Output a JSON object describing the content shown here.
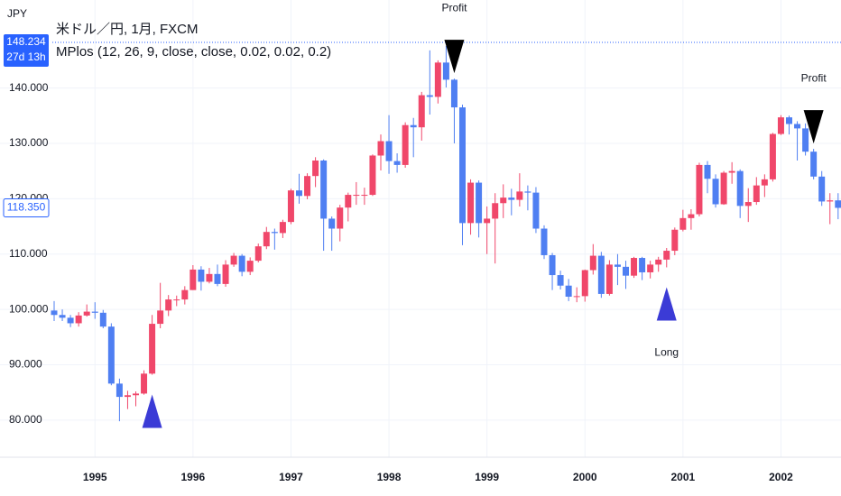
{
  "chart_data": {
    "type": "candlestick",
    "currency": "JPY",
    "title": "米ドル／円, 1月, FXCM",
    "indicator": "MPlos (12, 26, 9, close, close, 0.02, 0.02, 0.2)",
    "categories": [
      null,
      null,
      null,
      null,
      null,
      "1995",
      null,
      null,
      null,
      null,
      null,
      null,
      null,
      null,
      null,
      null,
      null,
      "1996",
      null,
      null,
      null,
      null,
      null,
      null,
      null,
      null,
      null,
      null,
      null,
      "1997",
      null,
      null,
      null,
      null,
      null,
      null,
      null,
      null,
      null,
      null,
      null,
      "1998",
      null,
      null,
      null,
      null,
      null,
      null,
      null,
      null,
      null,
      null,
      null,
      "1999",
      null,
      null,
      null,
      null,
      null,
      null,
      null,
      null,
      null,
      null,
      null,
      "2000",
      null,
      null,
      null,
      null,
      null,
      null,
      null,
      null,
      null,
      null,
      null,
      "2001",
      null,
      null,
      null,
      null,
      null,
      null,
      null,
      null,
      null,
      null,
      null,
      "2002",
      null,
      null,
      null,
      null,
      null,
      null,
      null
    ],
    "open": [
      99.8,
      99.0,
      98.5,
      97.5,
      98.9,
      99.6,
      99.4,
      96.9,
      86.6,
      84.2,
      84.5,
      84.8,
      88.4,
      97.4,
      99.8,
      101.8,
      101.8,
      103.5,
      107.2,
      105.0,
      106.4,
      104.6,
      108.1,
      109.7,
      106.8,
      108.8,
      111.4,
      114.0,
      113.8,
      115.8,
      121.5,
      120.5,
      124.1,
      126.9,
      116.4,
      114.6,
      118.4,
      120.7,
      120.7,
      120.7,
      127.8,
      130.4,
      126.8,
      126.1,
      133.3,
      132.9,
      138.7,
      138.4,
      144.6,
      141.5,
      136.5,
      115.6,
      122.9,
      115.6,
      116.4,
      119.2,
      120.2,
      119.8,
      121.3,
      121.1,
      114.6,
      109.8,
      106.2,
      104.3,
      102.3,
      102.4,
      107.1,
      109.7,
      102.8,
      108.1,
      107.7,
      106.1,
      109.3,
      106.7,
      108.1,
      109.0,
      110.6,
      114.4,
      116.5,
      117.2,
      126.1,
      123.6,
      119.0,
      124.7,
      125.0,
      118.7,
      119.4,
      122.4,
      123.5,
      131.7,
      134.7,
      133.5,
      132.7,
      128.5,
      124.0,
      119.5,
      119.7
    ],
    "high": [
      101.5,
      100.0,
      99.0,
      99.5,
      100.9,
      101.3,
      99.9,
      97.5,
      87.5,
      85.3,
      85.2,
      89.0,
      99.0,
      104.8,
      102.6,
      102.5,
      104.2,
      108.0,
      107.8,
      107.5,
      108.1,
      108.9,
      110.2,
      110.0,
      109.4,
      111.9,
      114.9,
      114.6,
      116.2,
      121.8,
      124.5,
      124.6,
      127.5,
      127.1,
      116.8,
      118.9,
      121.1,
      123.0,
      122.0,
      128.0,
      131.6,
      135.1,
      128.2,
      133.8,
      134.6,
      139.3,
      146.8,
      145.0,
      147.6,
      141.7,
      137.0,
      123.5,
      123.3,
      118.6,
      121.0,
      122.6,
      121.8,
      124.6,
      122.4,
      122.1,
      115.2,
      110.2,
      107.0,
      105.5,
      104.0,
      107.2,
      111.8,
      110.4,
      108.9,
      110.0,
      108.8,
      109.5,
      109.5,
      108.8,
      109.5,
      111.1,
      114.8,
      118.0,
      118.1,
      126.5,
      126.8,
      124.4,
      125.0,
      126.6,
      125.3,
      121.9,
      123.9,
      124.4,
      131.9,
      135.1,
      135.0,
      134.0,
      133.6,
      129.0,
      125.0,
      121.0,
      121.0
    ],
    "low": [
      97.9,
      97.9,
      96.8,
      96.9,
      98.7,
      98.3,
      96.6,
      86.3,
      79.8,
      82.0,
      82.5,
      84.6,
      88.2,
      96.6,
      98.8,
      100.6,
      100.9,
      103.5,
      103.4,
      104.7,
      104.2,
      104.1,
      107.7,
      106.0,
      106.2,
      108.5,
      110.9,
      110.8,
      112.9,
      115.4,
      119.1,
      119.9,
      122.1,
      110.6,
      110.6,
      112.3,
      115.9,
      118.9,
      118.9,
      120.5,
      125.1,
      124.5,
      124.7,
      125.6,
      127.5,
      130.5,
      135.2,
      137.2,
      140.1,
      130.0,
      111.6,
      113.5,
      113.0,
      110.0,
      108.3,
      116.5,
      117.0,
      118.6,
      117.9,
      113.8,
      109.1,
      103.5,
      103.6,
      101.5,
      101.3,
      101.4,
      106.3,
      102.1,
      102.5,
      104.4,
      103.7,
      105.7,
      105.3,
      105.6,
      106.8,
      107.6,
      109.8,
      114.1,
      114.4,
      116.8,
      121.0,
      118.4,
      118.9,
      122.7,
      116.5,
      115.8,
      118.9,
      120.3,
      123.1,
      131.5,
      131.6,
      126.9,
      127.8,
      123.5,
      118.7,
      115.4,
      116.3
    ],
    "close": [
      99.0,
      98.5,
      97.5,
      98.9,
      99.6,
      99.4,
      96.9,
      86.6,
      84.2,
      84.5,
      84.8,
      88.4,
      97.4,
      99.8,
      101.8,
      101.8,
      103.5,
      107.2,
      105.0,
      106.4,
      104.6,
      108.1,
      109.7,
      106.8,
      108.8,
      111.4,
      114.0,
      113.8,
      115.8,
      121.5,
      120.5,
      124.1,
      126.9,
      116.4,
      114.6,
      118.4,
      120.7,
      120.7,
      120.7,
      127.8,
      130.4,
      126.8,
      126.1,
      133.3,
      132.9,
      138.7,
      138.4,
      144.6,
      141.5,
      136.5,
      115.6,
      122.9,
      115.6,
      116.4,
      119.2,
      120.2,
      119.8,
      121.3,
      121.1,
      114.6,
      109.8,
      106.2,
      104.3,
      102.3,
      102.4,
      107.1,
      109.7,
      102.8,
      108.1,
      107.7,
      106.1,
      109.3,
      106.7,
      108.1,
      109.0,
      110.6,
      114.4,
      116.5,
      117.2,
      126.1,
      123.6,
      119.0,
      124.7,
      125.0,
      118.7,
      119.4,
      122.4,
      123.5,
      131.7,
      134.7,
      133.5,
      132.7,
      128.5,
      124.0,
      119.5,
      119.7,
      118.35
    ],
    "up_color": "#f0476a",
    "down_color": "#4f7ff2",
    "ylim": [
      73.3,
      155.9
    ],
    "yticks": [
      {
        "value": 80,
        "label": "80.000"
      },
      {
        "value": 90,
        "label": "90.000"
      },
      {
        "value": 100,
        "label": "100.000"
      },
      {
        "value": 110,
        "label": "110.000"
      },
      {
        "value": 120,
        "label": "120.000"
      },
      {
        "value": 130,
        "label": "130.000"
      },
      {
        "value": 140,
        "label": "140.000"
      }
    ],
    "grid": true,
    "signals": [
      {
        "index": 12,
        "direction": "up",
        "color": "#3b3bd6"
      },
      {
        "index": 49,
        "direction": "down",
        "color": "#000000",
        "label": "Profit"
      },
      {
        "index": 75,
        "direction": "up",
        "color": "#3b3bd6",
        "label": "Long"
      },
      {
        "index": 93,
        "direction": "down",
        "color": "#000000",
        "label": "Profit"
      }
    ],
    "high_line": {
      "value": 148.234,
      "label": "148.234",
      "countdown": "27d 13h"
    },
    "last_price": {
      "value": 118.35,
      "label": "118.350"
    }
  }
}
